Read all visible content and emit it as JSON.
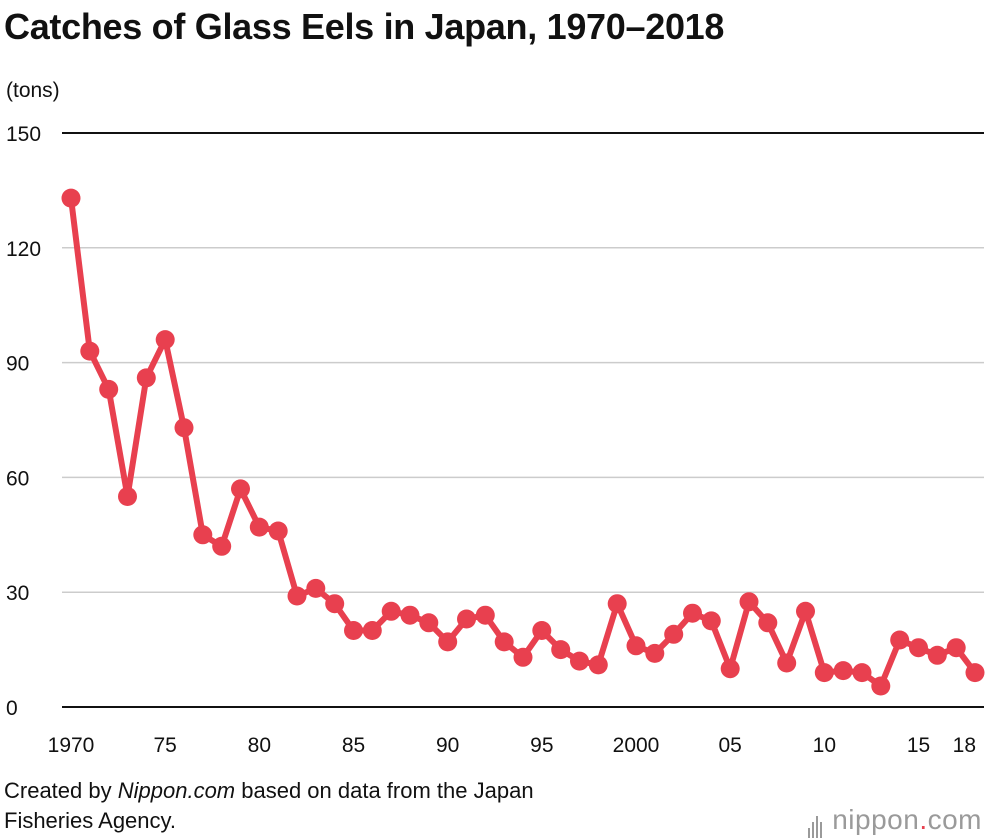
{
  "title": "Catches of Glass Eels in Japan, 1970–2018",
  "unit_label": "(tons)",
  "source": {
    "prefix": "Created by ",
    "brand": "Nippon.com",
    "suffix_line1": " based on data from the Japan",
    "line2": "Fisheries Agency."
  },
  "logo": {
    "main": "nippon",
    "dot": ".",
    "tail": "com"
  },
  "colors": {
    "series": "#e8404f",
    "grid": "#cccccc",
    "axis": "#111111"
  },
  "chart_data": {
    "type": "line",
    "title": "Catches of Glass Eels in Japan, 1970–2018",
    "ylabel": "(tons)",
    "ylim": [
      0,
      150
    ],
    "yticks": [
      0,
      30,
      60,
      90,
      120,
      150
    ],
    "xlim": [
      1970,
      2018
    ],
    "xticks": [
      {
        "value": 1970,
        "label": "1970"
      },
      {
        "value": 1975,
        "label": "75"
      },
      {
        "value": 1980,
        "label": "80"
      },
      {
        "value": 1985,
        "label": "85"
      },
      {
        "value": 1990,
        "label": "90"
      },
      {
        "value": 1995,
        "label": "95"
      },
      {
        "value": 2000,
        "label": "2000"
      },
      {
        "value": 2005,
        "label": "05"
      },
      {
        "value": 2010,
        "label": "10"
      },
      {
        "value": 2015,
        "label": "15"
      },
      {
        "value": 2018,
        "label": "18"
      }
    ],
    "grid": true,
    "x": [
      1970,
      1971,
      1972,
      1973,
      1974,
      1975,
      1976,
      1977,
      1978,
      1979,
      1980,
      1981,
      1982,
      1983,
      1984,
      1985,
      1986,
      1987,
      1988,
      1989,
      1990,
      1991,
      1992,
      1993,
      1994,
      1995,
      1996,
      1997,
      1998,
      1999,
      2000,
      2001,
      2002,
      2003,
      2004,
      2005,
      2006,
      2007,
      2008,
      2009,
      2010,
      2011,
      2012,
      2013,
      2014,
      2015,
      2016,
      2017,
      2018
    ],
    "values": [
      133,
      93,
      83,
      55,
      86,
      96,
      73,
      45,
      42,
      57,
      47,
      46,
      29,
      31,
      27,
      20,
      20,
      25,
      24,
      22,
      17,
      23,
      24,
      17,
      13,
      20,
      15,
      12,
      11,
      27,
      16,
      14,
      19,
      24.5,
      22.5,
      10,
      27.5,
      22,
      11.5,
      25,
      9,
      9.5,
      9,
      5.5,
      17.5,
      15.5,
      13.5,
      15.5,
      9
    ]
  }
}
